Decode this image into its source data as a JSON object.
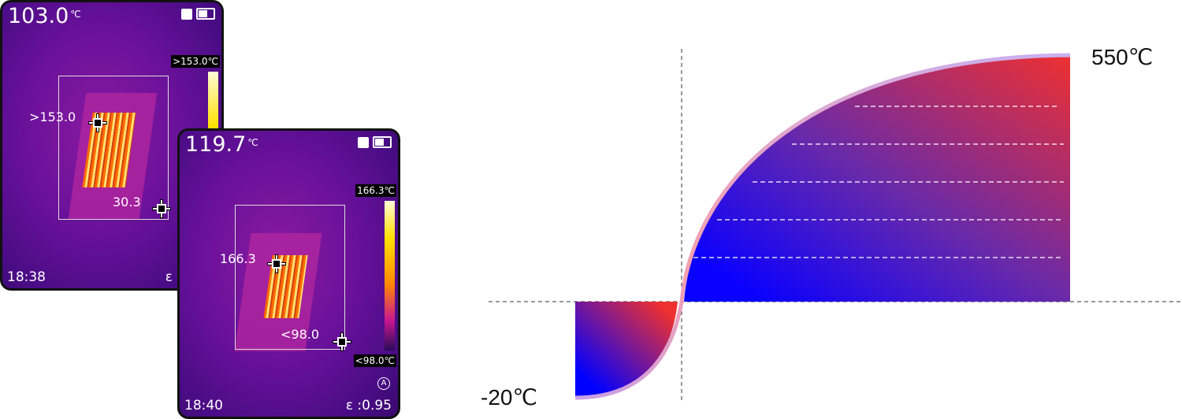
{
  "screen1": {
    "main_temp": "103.0",
    "unit": "℃",
    "scale_max": ">153.0℃",
    "max_value": ">153.0",
    "min_value": "30.3",
    "time": "18:38",
    "emissivity_symbol": "ε"
  },
  "screen2": {
    "main_temp": "119.7",
    "unit": "℃",
    "scale_max": "166.3℃",
    "scale_min": "<98.0℃",
    "max_value": "166.3",
    "min_value": "<98.0",
    "time": "18:40",
    "emissivity": "ε :0.95",
    "auto_badge": "A"
  },
  "range": {
    "max_label": "550℃",
    "min_label": "-20℃"
  },
  "colors": {
    "cold": "#0000ff",
    "hot": "#ee3030",
    "outline": "#f0a8b8"
  }
}
